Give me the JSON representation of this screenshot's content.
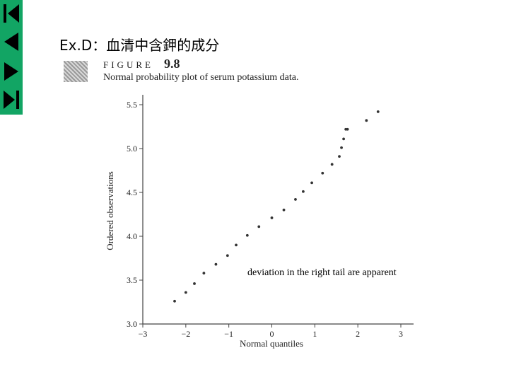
{
  "title": "Ex.D：血清中含鉀的成分",
  "figure": {
    "label": "FIGURE",
    "number": "9.8",
    "caption": "Normal probability plot of serum potassium data."
  },
  "annotation": "deviation in the right tail are apparent",
  "chart_data": {
    "type": "scatter",
    "title": "",
    "xlabel": "Normal quantiles",
    "ylabel": "Ordered observations",
    "xlim": [
      -3,
      3
    ],
    "ylim": [
      3.0,
      5.5
    ],
    "xticks": [
      "−3",
      "−2",
      "−1",
      "0",
      "1",
      "2",
      "3"
    ],
    "yticks": [
      "3.0",
      "3.5",
      "4.0",
      "4.5",
      "5.0",
      "5.5"
    ],
    "grid": false,
    "series": [
      {
        "x": [
          -2.26,
          -2.0,
          -1.8,
          -1.58,
          -1.3,
          -1.03,
          -0.83,
          -0.57,
          -0.3,
          0.0,
          0.28,
          0.55,
          0.73,
          0.93,
          1.18,
          1.4,
          1.57,
          1.62,
          1.67,
          1.72,
          1.76,
          2.2,
          2.47
        ],
        "y": [
          3.26,
          3.36,
          3.46,
          3.58,
          3.68,
          3.78,
          3.9,
          4.01,
          4.11,
          4.21,
          4.3,
          4.42,
          4.51,
          4.61,
          4.72,
          4.82,
          4.91,
          5.01,
          5.11,
          5.22,
          5.22,
          5.32,
          5.42
        ]
      }
    ]
  },
  "nav": {
    "first_icon": "first-slide-icon",
    "prev_icon": "previous-slide-icon",
    "next_icon": "next-slide-icon",
    "last_icon": "last-slide-icon",
    "color": "#12a564"
  }
}
